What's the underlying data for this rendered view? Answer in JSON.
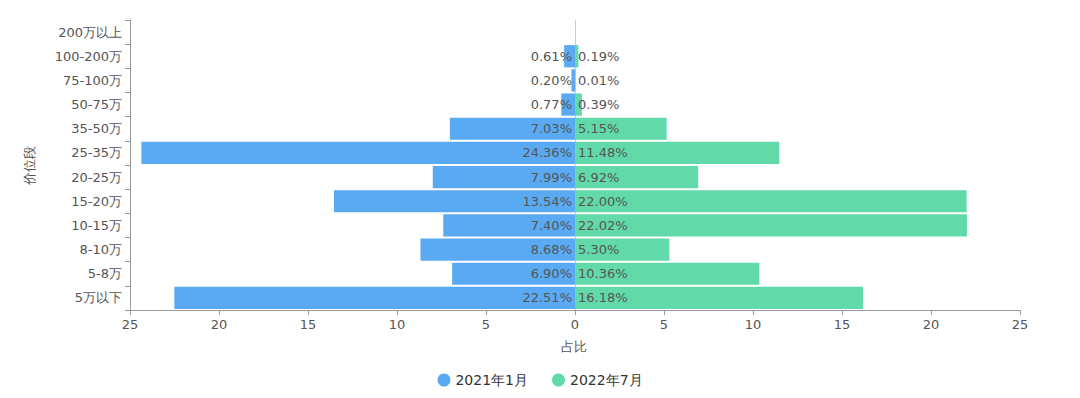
{
  "chart_data": {
    "type": "bar",
    "orientation": "horizontal",
    "x_label": "占比",
    "y_label": "价位段",
    "categories": [
      "5万以下",
      "5-8万",
      "8-10万",
      "10-15万",
      "15-20万",
      "20-25万",
      "25-35万",
      "35-50万",
      "50-75万",
      "75-100万",
      "100-200万",
      "200万以上"
    ],
    "series": [
      {
        "name": "2021年1月",
        "color": "#5aaaf3",
        "values": [
          22.51,
          6.9,
          8.68,
          7.4,
          13.54,
          7.99,
          24.36,
          7.03,
          0.77,
          0.2,
          0.61,
          null
        ],
        "value_labels": [
          "22.51%",
          "6.90%",
          "8.68%",
          "7.40%",
          "13.54%",
          "7.99%",
          "24.36%",
          "7.03%",
          "0.77%",
          "0.20%",
          "0.61%",
          null
        ]
      },
      {
        "name": "2022年7月",
        "color": "#62d9a8",
        "values": [
          16.18,
          10.36,
          5.3,
          22.02,
          22.0,
          6.92,
          11.48,
          5.15,
          0.39,
          0.01,
          0.19,
          null
        ],
        "value_labels": [
          "16.18%",
          "10.36%",
          "5.30%",
          "22.02%",
          "22.00%",
          "6.92%",
          "11.48%",
          "5.15%",
          "0.39%",
          "0.01%",
          "0.19%",
          null
        ]
      }
    ],
    "xlim": [
      0,
      25
    ],
    "xticks": [
      0,
      5,
      10,
      15,
      20,
      25
    ],
    "data_labels": true,
    "legend": "bottom",
    "grid": false
  }
}
